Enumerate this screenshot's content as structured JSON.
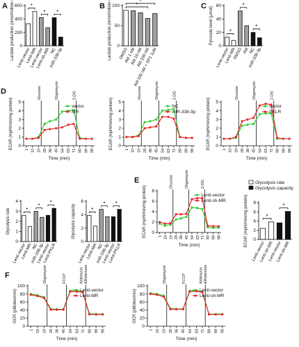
{
  "chart_data": [
    {
      "type": "bar",
      "panel": "A",
      "ylabel": "Lactate production (nmol/million cells)",
      "categories": [
        "Lenti-vector",
        "Lenti-MR",
        "Lenti-vector",
        "Lenti-sh-MR",
        "NC",
        "miR-338-3p"
      ],
      "values": [
        330,
        510,
        420,
        270,
        420,
        130
      ],
      "colors": [
        "#ffffff",
        "#ffffff",
        "#a0a0a0",
        "#a0a0a0",
        "#111111",
        "#111111"
      ],
      "ylim": [
        0,
        600
      ],
      "yticks": [
        0,
        200,
        400,
        600
      ],
      "significance": [
        "*",
        "*",
        "*"
      ]
    },
    {
      "type": "bar",
      "panel": "B",
      "ylabel": "Lactate production (nmol/million cells)",
      "categories": [
        "DMSO",
        "Ald 1 nM",
        "Ald 10 nM",
        "Ald 100 nM",
        "Ald 100 nM + SP1 1μM"
      ],
      "values": [
        88,
        87,
        82,
        68,
        80
      ],
      "colors": [
        "#ffffff",
        "#a0a0a0",
        "#a0a0a0",
        "#a0a0a0",
        "#a0a0a0"
      ],
      "ylim": [
        0,
        100
      ],
      "yticks": [
        0,
        50,
        100
      ],
      "significance": [
        "*",
        "*"
      ]
    },
    {
      "type": "bar",
      "panel": "C",
      "ylabel": "Pyruvate level (μmol)",
      "categories": [
        "Lenti-vector",
        "Lenti-MR",
        "DMSO",
        "Ald",
        "NC",
        "miR-338-3p"
      ],
      "values": [
        13,
        8,
        52,
        30,
        20,
        12
      ],
      "colors": [
        "#ffffff",
        "#ffffff",
        "#a0a0a0",
        "#a0a0a0",
        "#111111",
        "#111111"
      ],
      "ylim": [
        0,
        60
      ],
      "yticks": [
        0,
        20,
        40,
        60
      ],
      "significance": [
        "*",
        "*",
        "*"
      ]
    },
    {
      "type": "line",
      "panel": "D",
      "ylabel": "ECAR (mpH/min/mg protein)",
      "xlabel": "Time (min)",
      "x": [
        1,
        10,
        19,
        28,
        36,
        45,
        54,
        63,
        71,
        80,
        89,
        98
      ],
      "xlim": [
        -3,
        102
      ],
      "xticks": [
        1,
        10,
        19,
        28,
        36,
        45,
        54,
        63,
        71,
        80,
        89,
        98
      ],
      "ylim": [
        0,
        5
      ],
      "yticks": [
        0,
        1,
        2,
        3,
        4,
        5
      ],
      "events": [
        {
          "label": "Glucose",
          "x": 23
        },
        {
          "label": "Oligomycin",
          "x": 49
        },
        {
          "label": "2-DG",
          "x": 75
        }
      ],
      "series": [
        {
          "name": "vector",
          "color": "#33cc33",
          "values": [
            0.8,
            0.8,
            1.0,
            2.5,
            2.8,
            3.0,
            3.9,
            4.0,
            4.1,
            0.9,
            0.8,
            0.8
          ]
        },
        {
          "name": "MR",
          "color": "#e8262b",
          "values": [
            0.8,
            0.8,
            0.9,
            1.8,
            1.9,
            2.0,
            2.1,
            2.4,
            2.5,
            0.8,
            0.8,
            0.8
          ]
        }
      ]
    },
    {
      "type": "line",
      "ylabel": "ECAR (mpH/min/mg protein)",
      "xlabel": "Time (min)",
      "x": [
        1,
        10,
        19,
        28,
        36,
        45,
        54,
        63,
        71,
        80,
        89,
        98
      ],
      "xlim": [
        -3,
        102
      ],
      "xticks": [
        1,
        10,
        19,
        28,
        36,
        45,
        54,
        63,
        71,
        80,
        89,
        98
      ],
      "ylim": [
        0,
        5
      ],
      "yticks": [
        0,
        1,
        2,
        3,
        4,
        5
      ],
      "events": [
        {
          "label": "Glucose",
          "x": 23
        },
        {
          "label": "Oligomycin",
          "x": 49
        },
        {
          "label": "2-DG",
          "x": 75
        }
      ],
      "series": [
        {
          "name": "NC",
          "color": "#33cc33",
          "values": [
            1.0,
            1.0,
            1.2,
            2.7,
            2.8,
            3.0,
            4.0,
            4.1,
            4.2,
            1.0,
            0.9,
            0.9
          ]
        },
        {
          "name": "miR-338-3p",
          "color": "#e8262b",
          "values": [
            1.0,
            1.0,
            1.1,
            2.0,
            2.1,
            2.2,
            3.3,
            3.3,
            3.1,
            1.0,
            0.9,
            0.9
          ]
        }
      ]
    },
    {
      "type": "line",
      "ylabel": "ECAR (mpH/min/mg protein)",
      "xlabel": "Time (min)",
      "x": [
        1,
        10,
        19,
        28,
        36,
        45,
        54,
        63,
        71,
        80,
        89,
        98
      ],
      "xlim": [
        -3,
        102
      ],
      "xticks": [
        1,
        10,
        19,
        28,
        36,
        45,
        54,
        63,
        71,
        80,
        89,
        98
      ],
      "ylim": [
        0,
        5
      ],
      "yticks": [
        0,
        1,
        2,
        3,
        4,
        5
      ],
      "events": [
        {
          "label": "Glucose",
          "x": 23
        },
        {
          "label": "Oligomycin",
          "x": 49
        },
        {
          "label": "2-DG",
          "x": 75
        }
      ],
      "series": [
        {
          "name": "vector",
          "color": "#33cc33",
          "values": [
            0.8,
            0.8,
            0.9,
            2.3,
            2.4,
            2.5,
            3.6,
            3.7,
            3.7,
            0.8,
            0.8,
            0.8
          ]
        },
        {
          "name": "PKLR",
          "color": "#e8262b",
          "values": [
            0.8,
            0.8,
            1.0,
            2.8,
            3.0,
            3.2,
            4.6,
            4.8,
            4.7,
            0.9,
            0.8,
            0.8
          ]
        }
      ]
    },
    {
      "type": "bar",
      "ylabel": "Glycolysis rate",
      "categories": [
        "Lenti-vector",
        "Lenti-MR",
        "NC",
        "miR-338-3p",
        "Lenti-vector",
        "Lenti-PKLR"
      ],
      "values": [
        2.6,
        1.5,
        3.0,
        2.4,
        2.6,
        3.3
      ],
      "colors": [
        "#ffffff",
        "#ffffff",
        "#a0a0a0",
        "#a0a0a0",
        "#111111",
        "#111111"
      ],
      "ylim": [
        0,
        4
      ],
      "yticks": [
        0,
        1,
        2,
        3,
        4
      ],
      "significance": [
        "*",
        "*",
        "*"
      ]
    },
    {
      "type": "bar",
      "ylabel": "Glycolysis capacity",
      "categories": [
        "Lenti-vector",
        "Lenti-MR",
        "NC",
        "miR-338-3p",
        "Lenti-vector",
        "Lenti-PKLR"
      ],
      "values": [
        3.9,
        2.3,
        4.8,
        3.7,
        3.7,
        4.8
      ],
      "colors": [
        "#ffffff",
        "#ffffff",
        "#a0a0a0",
        "#a0a0a0",
        "#111111",
        "#111111"
      ],
      "ylim": [
        0,
        6
      ],
      "yticks": [
        0,
        2,
        4,
        6
      ],
      "significance": [
        "*",
        "*",
        "*"
      ]
    },
    {
      "type": "line",
      "panel": "E",
      "ylabel": "ECAR (mpH/min/mg protein)",
      "xlabel": "Time (min)",
      "x": [
        1,
        10,
        19,
        28,
        36,
        45,
        54,
        63,
        71,
        80,
        89,
        98
      ],
      "xlim": [
        -3,
        102
      ],
      "xticks": [
        1,
        10,
        19,
        28,
        36,
        45,
        54,
        63,
        71,
        80,
        89,
        98
      ],
      "ylim": [
        0,
        8
      ],
      "yticks": [
        0,
        2,
        4,
        6,
        8
      ],
      "events": [
        {
          "label": "Glucose",
          "x": 23
        },
        {
          "label": "Oligomycin",
          "x": 49
        },
        {
          "label": "2-DG",
          "x": 75
        }
      ],
      "series": [
        {
          "name": "Lenti-vector",
          "color": "#33cc33",
          "values": [
            1.7,
            1.3,
            1.5,
            2.5,
            2.7,
            3.0,
            4.8,
            4.7,
            4.5,
            1.0,
            0.9,
            0.9
          ]
        },
        {
          "name": "Lenti-sh-MR",
          "color": "#e8262b",
          "values": [
            2.0,
            1.7,
            1.8,
            3.5,
            3.5,
            3.6,
            6.4,
            6.6,
            6.6,
            1.3,
            1.2,
            1.2
          ]
        }
      ]
    },
    {
      "type": "bar",
      "ylabel": "ECAR (mpH/min/mg protein)",
      "categories": [
        "Lenti-vector",
        "Lenti-sh-MR",
        "Lenti-vector",
        "Lenti-sh-MR"
      ],
      "values": [
        2.4,
        3.8,
        3.6,
        6.1
      ],
      "colors": [
        "#ffffff",
        "#ffffff",
        "#111111",
        "#111111"
      ],
      "ylim": [
        0,
        8
      ],
      "yticks": [
        0,
        2,
        4,
        6,
        8
      ],
      "significance": [
        "*",
        "*"
      ],
      "legend": [
        {
          "name": "Glycolysis rate",
          "color": "#ffffff"
        },
        {
          "name": "Glycolysis capacity",
          "color": "#111111"
        }
      ]
    },
    {
      "type": "line",
      "panel": "F",
      "ylabel": "OCR (pMoles/min)",
      "xlabel": "Time (min)",
      "x": [
        1,
        10,
        19,
        28,
        36,
        45,
        54,
        63,
        71,
        80,
        89,
        98
      ],
      "xlim": [
        -3,
        102
      ],
      "xticks": [
        1,
        10,
        19,
        28,
        36,
        45,
        54,
        63,
        71,
        80,
        89,
        98
      ],
      "ylim": [
        0,
        100
      ],
      "yticks": [
        0,
        20,
        40,
        60,
        80,
        100
      ],
      "events": [
        {
          "label": [
            "Oligomycin"
          ],
          "x": 23
        },
        {
          "label": [
            "FCCP"
          ],
          "x": 49
        },
        {
          "label": [
            "Antimycin",
            "&Rotenone"
          ],
          "x": 75
        }
      ],
      "series": [
        {
          "name": "Lenti-vector",
          "color": "#33cc33",
          "values": [
            80,
            77,
            72,
            43,
            42,
            42,
            88,
            89,
            86,
            31,
            30,
            30
          ]
        },
        {
          "name": "Lenti-MR",
          "color": "#e8262b",
          "values": [
            78,
            75,
            70,
            41,
            41,
            41,
            86,
            86,
            84,
            29,
            29,
            29
          ]
        }
      ]
    },
    {
      "type": "line",
      "ylabel": "OCR (pMoles/min)",
      "xlabel": "Time (min)",
      "x": [
        1,
        10,
        19,
        28,
        36,
        45,
        54,
        63,
        71,
        80,
        89,
        98
      ],
      "xlim": [
        -3,
        102
      ],
      "xticks": [
        1,
        10,
        19,
        28,
        36,
        45,
        54,
        63,
        71,
        80,
        89,
        98
      ],
      "ylim": [
        0,
        100
      ],
      "yticks": [
        0,
        20,
        40,
        60,
        80,
        100
      ],
      "events": [
        {
          "label": [
            "Oligomycin"
          ],
          "x": 23
        },
        {
          "label": [
            "FCCP"
          ],
          "x": 49
        },
        {
          "label": [
            "Antimycin",
            "&Rotenone"
          ],
          "x": 75
        }
      ],
      "series": [
        {
          "name": "Lenti-vector",
          "color": "#33cc33",
          "values": [
            82,
            80,
            76,
            44,
            43,
            43,
            88,
            88,
            86,
            30,
            30,
            30
          ]
        },
        {
          "name": "Lenti-sh-MR",
          "color": "#e8262b",
          "values": [
            80,
            78,
            73,
            42,
            42,
            42,
            86,
            87,
            84,
            29,
            29,
            29
          ]
        }
      ]
    }
  ]
}
